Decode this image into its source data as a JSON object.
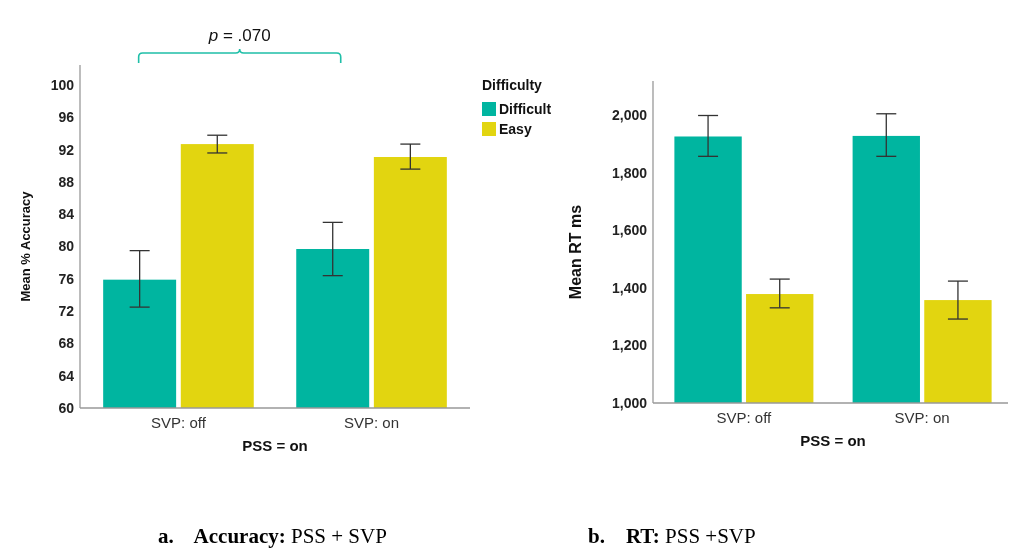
{
  "chart_data": [
    {
      "type": "bar",
      "title": "a.    Accuracy: PSS + SVP",
      "xlabel": "PSS = on",
      "ylabel": "Mean % Accuracy",
      "legend_title": "Difficulty",
      "legend": "top right",
      "categories": [
        "SVP: off",
        "SVP: on"
      ],
      "series": [
        {
          "name": "Difficult",
          "color": "#00b5a0",
          "values": [
            75.9,
            79.7
          ],
          "errors": [
            [
              72.5,
              79.5
            ],
            [
              76.4,
              83.0
            ]
          ]
        },
        {
          "name": "Easy",
          "color": "#e2d510",
          "values": [
            92.7,
            91.1
          ],
          "errors": [
            [
              91.6,
              93.8
            ],
            [
              89.6,
              92.7
            ]
          ]
        }
      ],
      "ylim": [
        60,
        102.5
      ],
      "yticks": [
        60,
        64,
        68,
        72,
        76,
        80,
        84,
        88,
        92,
        96,
        100
      ],
      "annotations": [
        "p = .070"
      ]
    },
    {
      "type": "bar",
      "title": "b.    RT: PSS +SVP",
      "xlabel": "PSS = on",
      "ylabel": "Mean RT ms",
      "categories": [
        "SVP: off",
        "SVP: on"
      ],
      "series": [
        {
          "color": "#00b5a0",
          "values": [
            1927,
            1929
          ],
          "errors": [
            [
              1858,
              2000
            ],
            [
              1858,
              2006
            ]
          ]
        },
        {
          "color": "#e2d510",
          "values": [
            1379,
            1358
          ],
          "errors": [
            [
              1331,
              1431
            ],
            [
              1292,
              1424
            ]
          ]
        }
      ],
      "ylim": [
        1000,
        2120
      ],
      "yticks": [
        {
          "value": 1000,
          "label": "1,000"
        },
        {
          "value": 1200,
          "label": "1,200"
        },
        {
          "value": 1400,
          "label": "1,400"
        },
        {
          "value": 1600,
          "label": "1,600"
        },
        {
          "value": 1800,
          "label": "1,800"
        },
        {
          "value": 2000,
          "label": "2,000"
        }
      ]
    }
  ]
}
